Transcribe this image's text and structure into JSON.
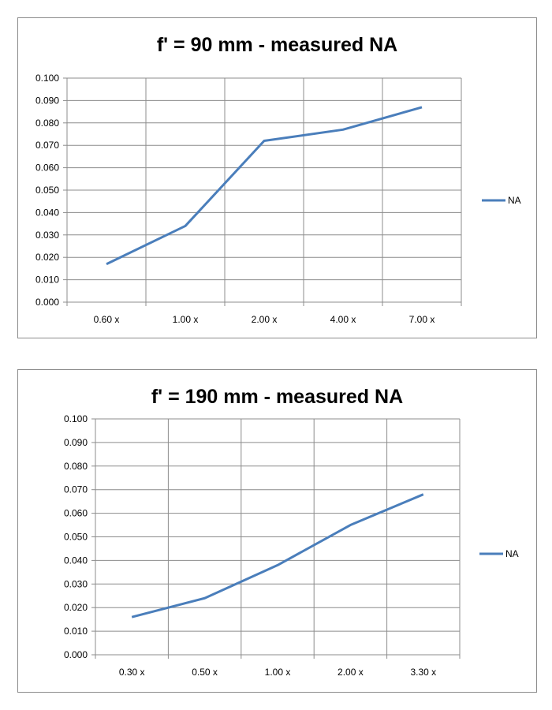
{
  "chart_data": [
    {
      "type": "line",
      "title": "f' = 90 mm - measured NA",
      "xlabel": "",
      "ylabel": "",
      "categories": [
        "0.60 x",
        "1.00 x",
        "2.00 x",
        "4.00 x",
        "7.00 x"
      ],
      "series": [
        {
          "name": "NA",
          "values": [
            0.017,
            0.034,
            0.072,
            0.077,
            0.087
          ]
        }
      ],
      "ylim": [
        0,
        0.1
      ],
      "yticks": [
        "0.000",
        "0.010",
        "0.020",
        "0.030",
        "0.040",
        "0.050",
        "0.060",
        "0.070",
        "0.080",
        "0.090",
        "0.100"
      ],
      "grid": true,
      "legend": "right",
      "line_color": "#4a7ebb"
    },
    {
      "type": "line",
      "title": "f' = 190 mm - measured NA",
      "xlabel": "",
      "ylabel": "",
      "categories": [
        "0.30 x",
        "0.50 x",
        "1.00 x",
        "2.00 x",
        "3.30 x"
      ],
      "series": [
        {
          "name": "NA",
          "values": [
            0.016,
            0.024,
            0.038,
            0.055,
            0.068
          ]
        }
      ],
      "ylim": [
        0,
        0.1
      ],
      "yticks": [
        "0.000",
        "0.010",
        "0.020",
        "0.030",
        "0.040",
        "0.050",
        "0.060",
        "0.070",
        "0.080",
        "0.090",
        "0.100"
      ],
      "grid": true,
      "legend": "right",
      "line_color": "#4a7ebb"
    }
  ]
}
